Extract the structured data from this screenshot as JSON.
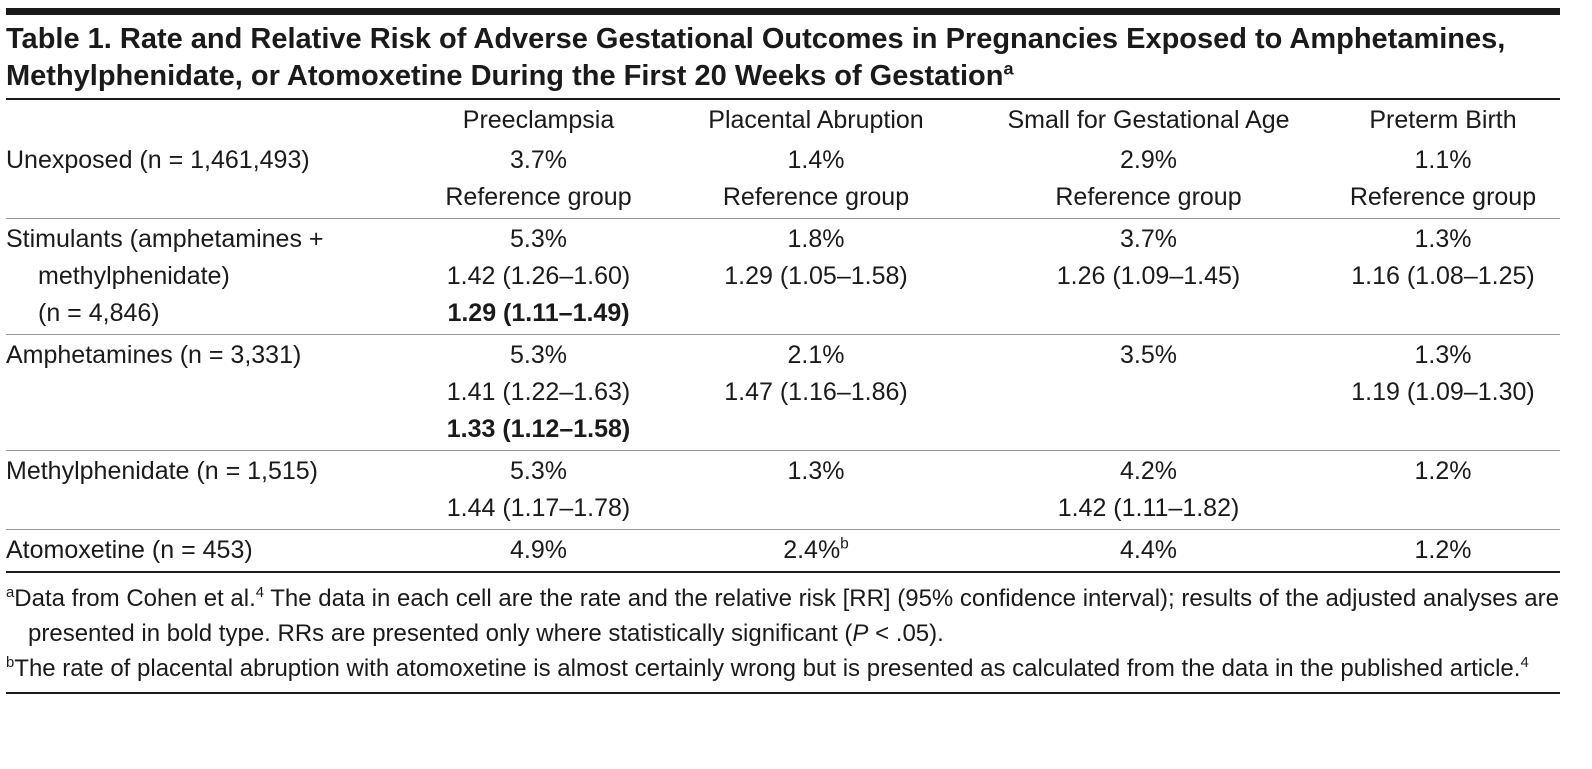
{
  "title": {
    "text": "Table 1. Rate and Relative Risk of Adverse Gestational Outcomes in Pregnancies Exposed to Amphetamines, Methylphenidate, or Atomoxetine During the First 20 Weeks of Gestation",
    "sup": "a"
  },
  "table": {
    "header": [
      "Preeclampsia",
      "Placental Abruption",
      "Small for Gestational Age",
      "Preterm Birth"
    ],
    "rows": [
      {
        "label": [
          "Unexposed (n = 1,461,493)"
        ],
        "cells": [
          {
            "rate": "3.7%",
            "rr": "Reference group"
          },
          {
            "rate": "1.4%",
            "rr": "Reference group"
          },
          {
            "rate": "2.9%",
            "rr": "Reference group"
          },
          {
            "rate": "1.1%",
            "rr": "Reference group"
          }
        ]
      },
      {
        "label": [
          "Stimulants (amphetamines +",
          "methylphenidate)",
          "(n = 4,846)"
        ],
        "cells": [
          {
            "rate": "5.3%",
            "rr": "1.42 (1.26–1.60)",
            "adjusted": "1.29 (1.11–1.49)"
          },
          {
            "rate": "1.8%",
            "rr": "1.29 (1.05–1.58)"
          },
          {
            "rate": "3.7%",
            "rr": "1.26 (1.09–1.45)"
          },
          {
            "rate": "1.3%",
            "rr": "1.16 (1.08–1.25)"
          }
        ]
      },
      {
        "label": [
          "Amphetamines (n = 3,331)"
        ],
        "cells": [
          {
            "rate": "5.3%",
            "rr": "1.41 (1.22–1.63)",
            "adjusted": "1.33 (1.12–1.58)"
          },
          {
            "rate": "2.1%",
            "rr": "1.47 (1.16–1.86)"
          },
          {
            "rate": "3.5%"
          },
          {
            "rate": "1.3%",
            "rr": "1.19 (1.09–1.30)"
          }
        ]
      },
      {
        "label": [
          "Methylphenidate (n = 1,515)"
        ],
        "cells": [
          {
            "rate": "5.3%",
            "rr": "1.44 (1.17–1.78)"
          },
          {
            "rate": "1.3%"
          },
          {
            "rate": "4.2%",
            "rr": "1.42 (1.11–1.82)"
          },
          {
            "rate": "1.2%"
          }
        ]
      },
      {
        "label": [
          "Atomoxetine (n = 453)"
        ],
        "cells": [
          {
            "rate": "4.9%"
          },
          {
            "rate": "2.4%",
            "rate_sup": "b"
          },
          {
            "rate": "4.4%"
          },
          {
            "rate": "1.2%"
          }
        ]
      }
    ]
  },
  "footnotes": [
    {
      "mark": "a",
      "segments": [
        {
          "text": "Data from Cohen et al."
        },
        {
          "sup": "4"
        },
        {
          "text": " The data in each cell are the rate and the relative risk [RR] (95% confidence interval); results of the adjusted analyses are presented in bold type. RRs are presented only where statistically significant ("
        },
        {
          "italic": "P"
        },
        {
          "text": " < .05)."
        }
      ]
    },
    {
      "mark": "b",
      "segments": [
        {
          "text": "The rate of placental abruption with atomoxetine is almost certainly wrong but is presented as calculated from the data in the published article."
        },
        {
          "sup": "4"
        }
      ]
    }
  ]
}
